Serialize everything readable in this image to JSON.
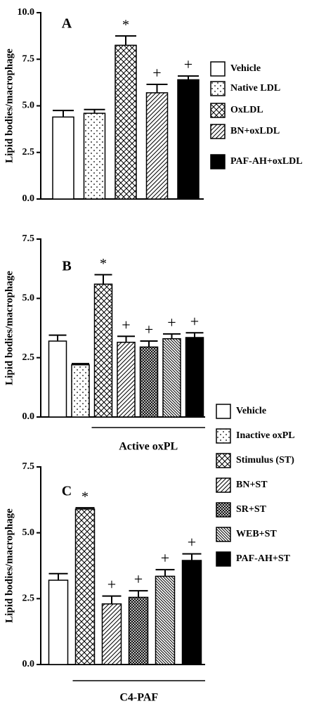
{
  "chart_data": [
    {
      "type": "bar",
      "panel_label": "A",
      "y_label": "Lipid bodies/macrophage",
      "categories": [
        "Vehicle",
        "Native LDL",
        "OxLDL",
        "BN+oxLDL",
        "PAF-AH+oxLDL"
      ],
      "values": [
        4.4,
        4.6,
        8.25,
        5.7,
        6.4
      ],
      "errors": [
        0.35,
        0.2,
        0.5,
        0.45,
        0.2
      ],
      "markers": [
        null,
        null,
        "*",
        "+",
        "+"
      ],
      "fills": [
        "white",
        "dots",
        "crosshatch",
        "hatch",
        "black"
      ],
      "ylim": [
        0,
        10
      ],
      "yticks": [
        {
          "value": 0,
          "label": "0.0"
        },
        2.5,
        {
          "value": 5,
          "label": "5.0"
        },
        7.5,
        {
          "value": 10,
          "label": "10.0"
        }
      ]
    },
    {
      "type": "bar",
      "panel_label": "B",
      "y_label": "Lipid bodies/macrophage",
      "categories": [
        "Vehicle",
        "Inactive oxPL",
        "Stimulus (ST)",
        "BN+ST",
        "SR+ST",
        "WEB+ST",
        "PAF-AH+ST"
      ],
      "values": [
        3.2,
        2.2,
        5.6,
        3.15,
        2.95,
        3.3,
        3.35
      ],
      "errors": [
        0.25,
        0.05,
        0.4,
        0.25,
        0.25,
        0.2,
        0.2
      ],
      "markers": [
        null,
        null,
        "*",
        "+",
        "+",
        "+",
        "+"
      ],
      "fills": [
        "white",
        "dots",
        "crosshatch",
        "hatch",
        "dense",
        "hatch2",
        "black"
      ],
      "group_label": "Active oxPL",
      "ylim": [
        0,
        7.5
      ],
      "yticks": [
        {
          "value": 0,
          "label": "0.0"
        },
        2.5,
        {
          "value": 5,
          "label": "5.0"
        },
        7.5
      ]
    },
    {
      "type": "bar",
      "panel_label": "C",
      "y_label": "Lipid bodies/macrophage",
      "values": [
        3.2,
        5.9,
        2.3,
        2.55,
        3.35,
        3.95
      ],
      "errors": [
        0.25,
        0.05,
        0.3,
        0.25,
        0.25,
        0.25
      ],
      "markers": [
        null,
        "*",
        "+",
        "+",
        "+",
        "+"
      ],
      "fills": [
        "white",
        "crosshatch",
        "hatch",
        "dense",
        "hatch2",
        "black"
      ],
      "group_label": "C4-PAF",
      "ylim": [
        0,
        7.5
      ],
      "yticks": [
        {
          "value": 0,
          "label": "0.0"
        },
        2.5,
        {
          "value": 5,
          "label": "5.0"
        },
        7.5
      ]
    }
  ]
}
